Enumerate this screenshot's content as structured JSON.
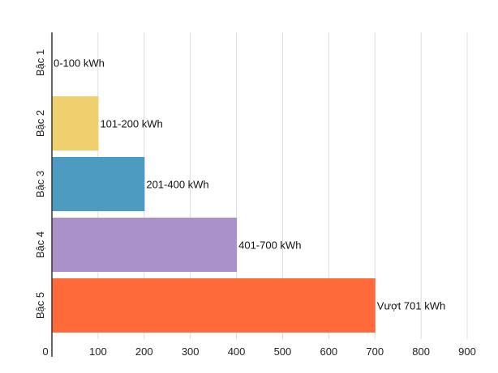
{
  "chart_data": {
    "type": "bar",
    "orientation": "horizontal",
    "categories": [
      "Bậc 1",
      "Bậc 2",
      "Bậc 3",
      "Bậc 4",
      "Bậc 5"
    ],
    "values": [
      0,
      101,
      201,
      401,
      701
    ],
    "data_labels": [
      "0-100 kWh",
      "101-200 kWh",
      "201-400 kWh",
      "401-700 kWh",
      "Vượt 701 kWh"
    ],
    "colors": [
      "#f0cf6e",
      "#f0cf6e",
      "#4d9bc1",
      "#ab91c9",
      "#ff6a3a"
    ],
    "x_ticks": [
      0,
      100,
      200,
      300,
      400,
      500,
      600,
      700,
      800,
      900
    ],
    "xlim": [
      0,
      900
    ],
    "title": "",
    "xlabel": "",
    "ylabel": "",
    "grid": "vertical",
    "legend": "none"
  }
}
